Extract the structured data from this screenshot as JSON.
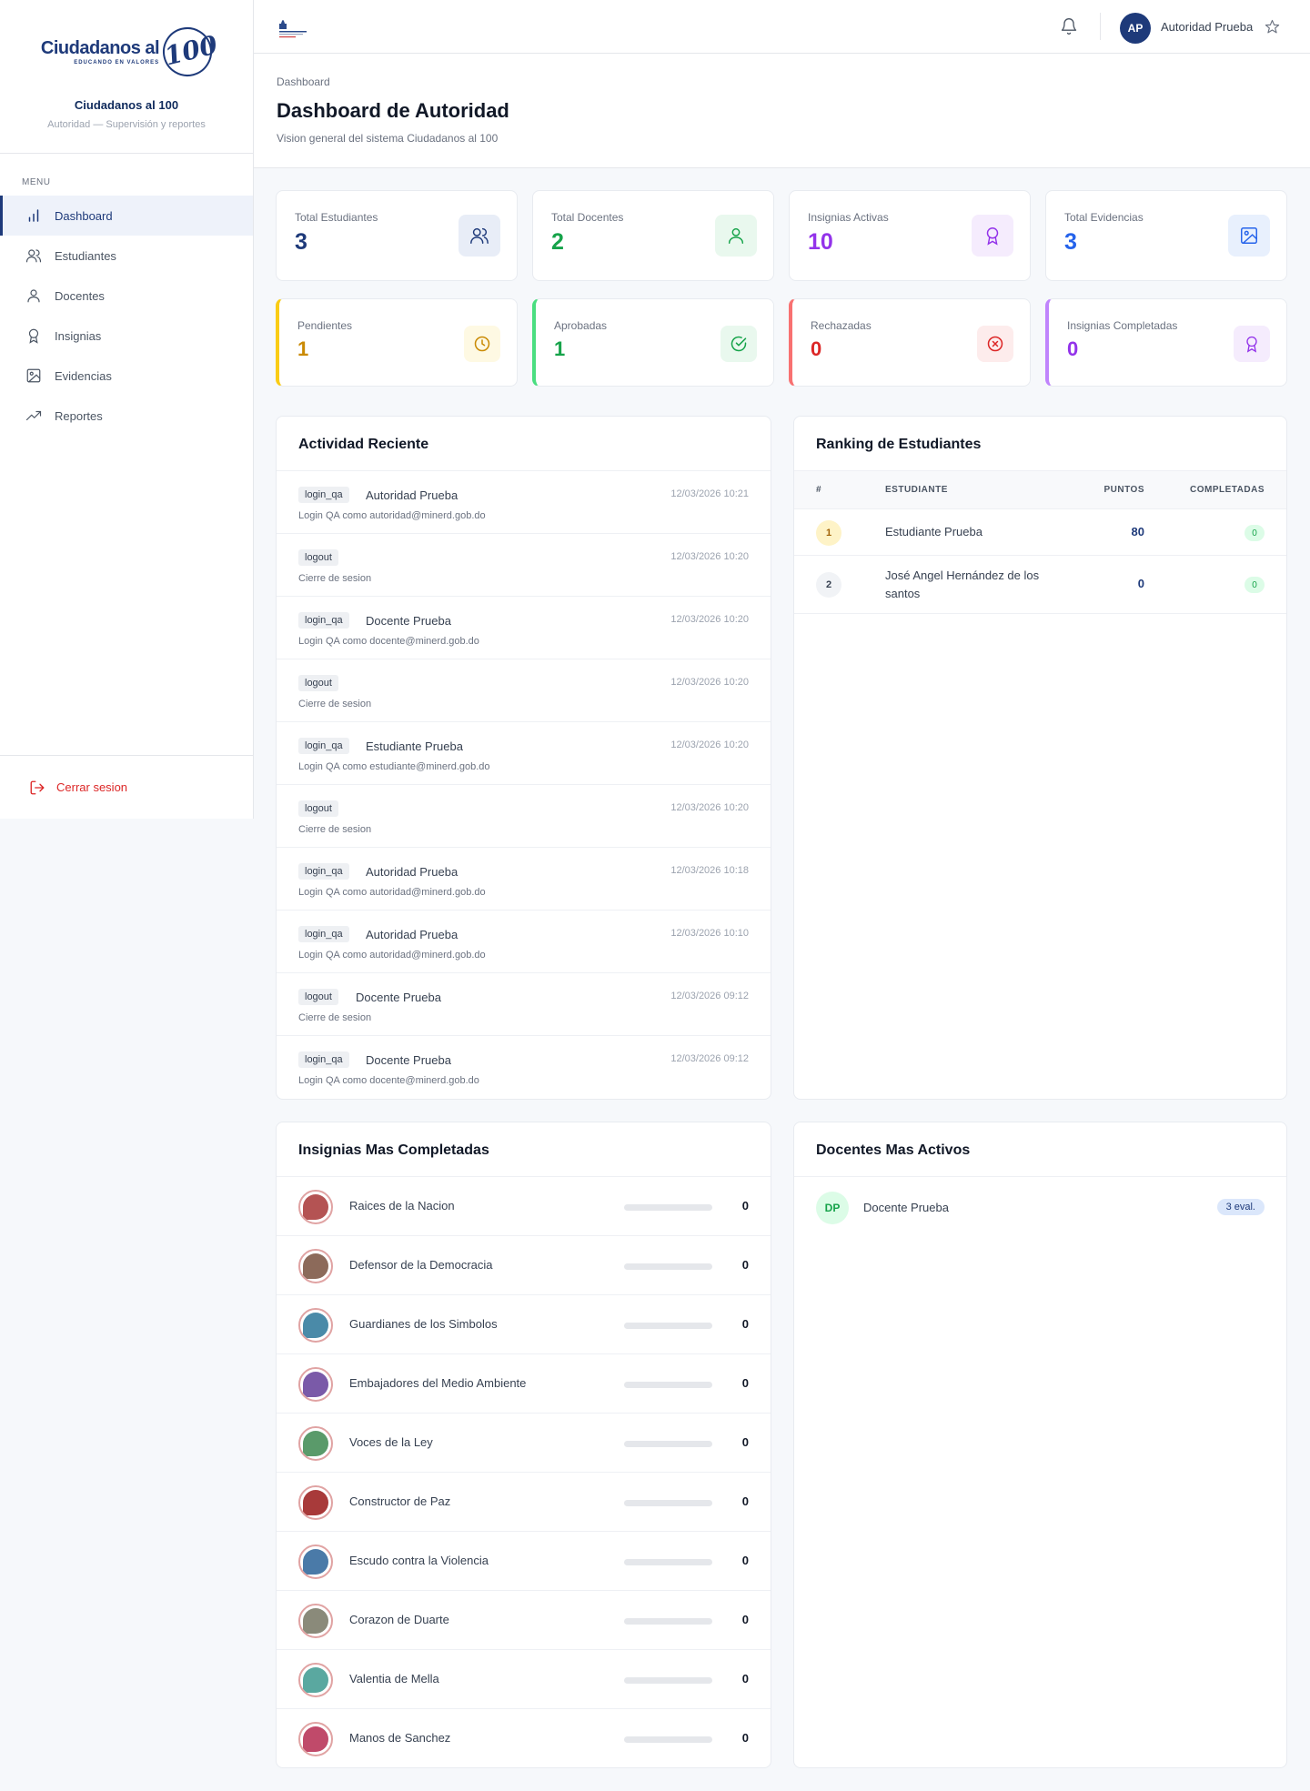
{
  "brand": {
    "logo_main": "Ciudadanos al",
    "logo_sub": "EDUCANDO EN VALORES",
    "logo_number": "100",
    "title": "Ciudadanos al 100",
    "subtitle": "Autoridad — Supervisión y reportes"
  },
  "sidebar": {
    "menu_label": "MENU",
    "items": [
      {
        "label": "Dashboard",
        "icon": "bar-chart-icon",
        "active": true
      },
      {
        "label": "Estudiantes",
        "icon": "users-icon"
      },
      {
        "label": "Docentes",
        "icon": "user-icon"
      },
      {
        "label": "Insignias",
        "icon": "award-icon"
      },
      {
        "label": "Evidencias",
        "icon": "image-icon"
      },
      {
        "label": "Reportes",
        "icon": "trending-up-icon"
      }
    ],
    "logout_label": "Cerrar sesion"
  },
  "topbar": {
    "avatar_initials": "AP",
    "user_name": "Autoridad Prueba"
  },
  "header": {
    "breadcrumb": "Dashboard",
    "title": "Dashboard de Autoridad",
    "subtitle": "Vision general del sistema Ciudadanos al 100"
  },
  "kpis": [
    {
      "label": "Total Estudiantes",
      "value": "3",
      "color": "#1e3a7a",
      "icon": "users-icon"
    },
    {
      "label": "Total Docentes",
      "value": "2",
      "color": "#16a34a",
      "icon": "user-icon"
    },
    {
      "label": "Insignias Activas",
      "value": "10",
      "color": "#9333ea",
      "icon": "award-icon"
    },
    {
      "label": "Total Evidencias",
      "value": "3",
      "color": "#2563eb",
      "icon": "image-icon"
    }
  ],
  "status_kpis": [
    {
      "label": "Pendientes",
      "value": "1",
      "color": "#ca8a04",
      "icon": "clock-icon"
    },
    {
      "label": "Aprobadas",
      "value": "1",
      "color": "#16a34a",
      "icon": "check-circle-icon"
    },
    {
      "label": "Rechazadas",
      "value": "0",
      "color": "#dc2626",
      "icon": "x-circle-icon"
    },
    {
      "label": "Insignias Completadas",
      "value": "0",
      "color": "#9333ea",
      "icon": "award-icon"
    }
  ],
  "activity": {
    "title": "Actividad Reciente",
    "items": [
      {
        "action": "login_qa",
        "user": "Autoridad Prueba",
        "time": "12/03/2026 10:21",
        "desc": "Login QA como autoridad@minerd.gob.do"
      },
      {
        "action": "logout",
        "user": "",
        "time": "12/03/2026 10:20",
        "desc": "Cierre de sesion"
      },
      {
        "action": "login_qa",
        "user": "Docente Prueba",
        "time": "12/03/2026 10:20",
        "desc": "Login QA como docente@minerd.gob.do"
      },
      {
        "action": "logout",
        "user": "",
        "time": "12/03/2026 10:20",
        "desc": "Cierre de sesion"
      },
      {
        "action": "login_qa",
        "user": "Estudiante Prueba",
        "time": "12/03/2026 10:20",
        "desc": "Login QA como estudiante@minerd.gob.do"
      },
      {
        "action": "logout",
        "user": "",
        "time": "12/03/2026 10:20",
        "desc": "Cierre de sesion"
      },
      {
        "action": "login_qa",
        "user": "Autoridad Prueba",
        "time": "12/03/2026 10:18",
        "desc": "Login QA como autoridad@minerd.gob.do"
      },
      {
        "action": "login_qa",
        "user": "Autoridad Prueba",
        "time": "12/03/2026 10:10",
        "desc": "Login QA como autoridad@minerd.gob.do"
      },
      {
        "action": "logout",
        "user": "Docente Prueba",
        "time": "12/03/2026 09:12",
        "desc": "Cierre de sesion"
      },
      {
        "action": "login_qa",
        "user": "Docente Prueba",
        "time": "12/03/2026 09:12",
        "desc": "Login QA como docente@minerd.gob.do"
      }
    ]
  },
  "ranking": {
    "title": "Ranking de Estudiantes",
    "columns": [
      "#",
      "ESTUDIANTE",
      "PUNTOS",
      "COMPLETADAS"
    ],
    "rows": [
      {
        "rank": "1",
        "name": "Estudiante Prueba",
        "points": "80",
        "completed": "0"
      },
      {
        "rank": "2",
        "name": "José Angel Hernández de los santos",
        "points": "0",
        "completed": "0"
      }
    ]
  },
  "badges": {
    "title": "Insignias Mas Completadas",
    "items": [
      {
        "name": "Raices de la Nacion",
        "count": "0",
        "progress": 0,
        "color": "#b45353"
      },
      {
        "name": "Defensor de la Democracia",
        "count": "0",
        "progress": 0,
        "color": "#8c6a5a"
      },
      {
        "name": "Guardianes de los Simbolos",
        "count": "0",
        "progress": 0,
        "color": "#4a8aa8"
      },
      {
        "name": "Embajadores del Medio Ambiente",
        "count": "0",
        "progress": 0,
        "color": "#7a5aa8"
      },
      {
        "name": "Voces de la Ley",
        "count": "0",
        "progress": 0,
        "color": "#5a9a6a"
      },
      {
        "name": "Constructor de Paz",
        "count": "0",
        "progress": 0,
        "color": "#a83a3a"
      },
      {
        "name": "Escudo contra la Violencia",
        "count": "0",
        "progress": 0,
        "color": "#4a7aa8"
      },
      {
        "name": "Corazon de Duarte",
        "count": "0",
        "progress": 0,
        "color": "#8a8a7a"
      },
      {
        "name": "Valentia de Mella",
        "count": "0",
        "progress": 0,
        "color": "#5aa8a0"
      },
      {
        "name": "Manos de Sanchez",
        "count": "0",
        "progress": 0,
        "color": "#c04a6a"
      }
    ]
  },
  "teachers": {
    "title": "Docentes Mas Activos",
    "items": [
      {
        "initials": "DP",
        "name": "Docente Prueba",
        "evals": "3 eval."
      }
    ]
  }
}
